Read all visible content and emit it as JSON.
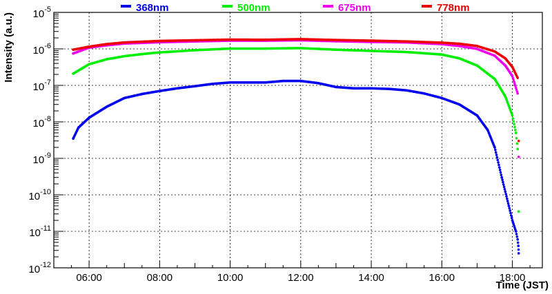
{
  "chart_data": {
    "type": "scatter",
    "xlabel": "Time (JST)",
    "ylabel": "Intensity (a.u.)",
    "x_unit": "hours JST",
    "xlim": [
      5.0,
      18.85
    ],
    "ylim": [
      1e-12,
      1e-05
    ],
    "y_scale": "log",
    "grid": true,
    "legend_position": "top",
    "x_ticks": [
      {
        "value": 6,
        "label": "06:00"
      },
      {
        "value": 8,
        "label": "08:00"
      },
      {
        "value": 10,
        "label": "10:00"
      },
      {
        "value": 12,
        "label": "12:00"
      },
      {
        "value": 14,
        "label": "14:00"
      },
      {
        "value": 16,
        "label": "16:00"
      },
      {
        "value": 18,
        "label": "18:00"
      }
    ],
    "y_ticks": [
      {
        "exp": -12,
        "base": "10",
        "power": "-12"
      },
      {
        "exp": -11,
        "base": "10",
        "power": "-11"
      },
      {
        "exp": -10,
        "base": "10",
        "power": "-10"
      },
      {
        "exp": -9,
        "base": "10",
        "power": "-9"
      },
      {
        "exp": -8,
        "base": "10",
        "power": "-8"
      },
      {
        "exp": -7,
        "base": "10",
        "power": "-7"
      },
      {
        "exp": -6,
        "base": "10",
        "power": "-6"
      },
      {
        "exp": -5,
        "base": "10",
        "power": "-5"
      }
    ],
    "series": [
      {
        "name": "368nm",
        "color": "#0000ee",
        "points": [
          [
            5.55,
            3.5e-09
          ],
          [
            5.7,
            7e-09
          ],
          [
            6.0,
            1.3e-08
          ],
          [
            6.5,
            2.6e-08
          ],
          [
            7.0,
            4.5e-08
          ],
          [
            7.5,
            5.8e-08
          ],
          [
            8.0,
            7e-08
          ],
          [
            8.5,
            8.3e-08
          ],
          [
            9.0,
            9.5e-08
          ],
          [
            9.5,
            1.1e-07
          ],
          [
            10.0,
            1.2e-07
          ],
          [
            10.5,
            1.2e-07
          ],
          [
            11.0,
            1.2e-07
          ],
          [
            11.5,
            1.32e-07
          ],
          [
            12.0,
            1.32e-07
          ],
          [
            12.5,
            1.15e-07
          ],
          [
            13.0,
            9e-08
          ],
          [
            13.5,
            8.3e-08
          ],
          [
            14.0,
            8.3e-08
          ],
          [
            14.5,
            8e-08
          ],
          [
            15.0,
            7.3e-08
          ],
          [
            15.5,
            6e-08
          ],
          [
            16.0,
            4.5e-08
          ],
          [
            16.5,
            3e-08
          ],
          [
            17.0,
            1.5e-08
          ],
          [
            17.3,
            6e-09
          ],
          [
            17.5,
            2e-09
          ],
          [
            17.7,
            3e-10
          ],
          [
            17.9,
            5e-11
          ],
          [
            18.0,
            2e-11
          ],
          [
            18.1,
            1e-11
          ],
          [
            18.15,
            6e-12
          ],
          [
            18.17,
            4e-12
          ],
          [
            18.18,
            2.5e-12
          ]
        ]
      },
      {
        "name": "500nm",
        "color": "#00ee00",
        "points": [
          [
            5.55,
            2.1e-07
          ],
          [
            6.0,
            3.8e-07
          ],
          [
            6.5,
            5.2e-07
          ],
          [
            7.0,
            6.3e-07
          ],
          [
            7.5,
            7.2e-07
          ],
          [
            8.0,
            8e-07
          ],
          [
            9.0,
            9.2e-07
          ],
          [
            10.0,
            1.02e-06
          ],
          [
            11.0,
            1.02e-06
          ],
          [
            12.0,
            1.05e-06
          ],
          [
            13.0,
            9.5e-07
          ],
          [
            14.0,
            8.8e-07
          ],
          [
            15.0,
            8.2e-07
          ],
          [
            16.0,
            7e-07
          ],
          [
            16.5,
            5.5e-07
          ],
          [
            17.0,
            3.5e-07
          ],
          [
            17.5,
            1.5e-07
          ],
          [
            17.8,
            5e-08
          ],
          [
            18.0,
            1.5e-08
          ],
          [
            18.1,
            5e-09
          ],
          [
            18.15,
            1.8e-09
          ],
          [
            18.18,
            3.5e-11
          ]
        ]
      },
      {
        "name": "675nm",
        "color": "#ee00ee",
        "points": [
          [
            5.55,
            7.5e-07
          ],
          [
            6.0,
            1.08e-06
          ],
          [
            6.5,
            1.25e-06
          ],
          [
            7.0,
            1.4e-06
          ],
          [
            8.0,
            1.52e-06
          ],
          [
            9.0,
            1.6e-06
          ],
          [
            10.0,
            1.68e-06
          ],
          [
            11.0,
            1.68e-06
          ],
          [
            12.0,
            1.72e-06
          ],
          [
            13.0,
            1.62e-06
          ],
          [
            14.0,
            1.55e-06
          ],
          [
            15.0,
            1.5e-06
          ],
          [
            16.0,
            1.35e-06
          ],
          [
            16.5,
            1.2e-06
          ],
          [
            17.0,
            1e-06
          ],
          [
            17.5,
            6.5e-07
          ],
          [
            17.8,
            3.5e-07
          ],
          [
            18.0,
            1.8e-07
          ],
          [
            18.15,
            6e-08
          ],
          [
            18.18,
            1.1e-09
          ]
        ]
      },
      {
        "name": "778nm",
        "color": "#ee0000",
        "points": [
          [
            5.55,
            9.5e-07
          ],
          [
            6.0,
            1.15e-06
          ],
          [
            6.5,
            1.35e-06
          ],
          [
            7.0,
            1.5e-06
          ],
          [
            8.0,
            1.65e-06
          ],
          [
            9.0,
            1.72e-06
          ],
          [
            10.0,
            1.8e-06
          ],
          [
            11.0,
            1.78e-06
          ],
          [
            12.0,
            1.85e-06
          ],
          [
            13.0,
            1.75e-06
          ],
          [
            14.0,
            1.68e-06
          ],
          [
            15.0,
            1.6e-06
          ],
          [
            16.0,
            1.48e-06
          ],
          [
            16.5,
            1.38e-06
          ],
          [
            17.0,
            1.2e-06
          ],
          [
            17.5,
            8.5e-07
          ],
          [
            17.8,
            5.5e-07
          ],
          [
            18.0,
            3.2e-07
          ],
          [
            18.15,
            1.6e-07
          ],
          [
            18.18,
            3e-09
          ]
        ]
      }
    ]
  }
}
